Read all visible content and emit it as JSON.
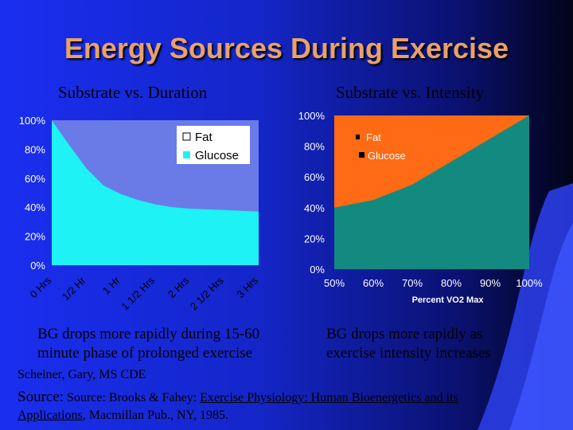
{
  "slide": {
    "title": "Energy Sources During Exercise",
    "left_subtitle": "Substrate vs. Duration",
    "right_subtitle": "Substrate vs. Intensity",
    "left_note_line1": "BG drops more rapidly during 15-60",
    "left_note_line2": "minute phase of prolonged exercise",
    "right_note_line1": "BG drops more rapidly as",
    "right_note_line2": "exercise intensity increases",
    "author": "Scheiner, Gary, MS CDE",
    "source_label": "Source:",
    "source_pre": "Source: Brooks & Fahey:",
    "source_book_a": "Exercise Physiology: Human Bioenergetics and its",
    "source_book_b": "Applications",
    "source_post": ", Macmillan Pub., NY, 1985.",
    "colors": {
      "title": "#e8a16a",
      "background_dark": "#020418",
      "background_light": "#1a2ef0"
    }
  },
  "chart_data": [
    {
      "type": "area",
      "title": "Substrate vs. Duration",
      "categories": [
        "0 Hrs",
        "1/2 Hr",
        "1 Hr",
        "1 1/2 Hrs",
        "2 Hrs",
        "2 1/2 Hrs",
        "3 Hrs"
      ],
      "x": [
        0,
        0.25,
        0.5,
        0.75,
        1,
        1.25,
        1.5,
        1.75,
        2,
        2.25,
        2.5,
        2.75,
        3
      ],
      "yticks": [
        "0%",
        "20%",
        "40%",
        "60%",
        "80%",
        "100%"
      ],
      "ylim": [
        0,
        100
      ],
      "series": [
        {
          "name": "Fat",
          "color": "#6a7be8",
          "values": [
            0,
            17,
            33,
            45,
            51,
            55,
            58,
            60,
            61,
            61.5,
            62,
            62.5,
            63
          ]
        },
        {
          "name": "Glucose",
          "color": "#1ef2f5",
          "values": [
            100,
            83,
            67,
            55,
            49,
            45,
            42,
            40,
            39,
            38.5,
            38,
            37.5,
            37
          ]
        }
      ],
      "stacked": true,
      "legend": "top-right",
      "grid": false
    },
    {
      "type": "area",
      "title": "Substrate vs. Intensity",
      "xlabel": "Percent VO2 Max",
      "categories": [
        "50%",
        "60%",
        "70%",
        "80%",
        "90%",
        "100%"
      ],
      "yticks": [
        "0%",
        "20%",
        "40%",
        "60%",
        "80%",
        "100%"
      ],
      "ylim": [
        0,
        100
      ],
      "series": [
        {
          "name": "Fat",
          "color": "#ff6a14",
          "values": [
            60,
            55,
            45,
            30,
            15,
            0
          ]
        },
        {
          "name": "Glucose",
          "color": "#138a80",
          "values": [
            40,
            45,
            55,
            70,
            85,
            100
          ]
        }
      ],
      "stacked": true,
      "legend": "top-left",
      "grid": false
    }
  ]
}
